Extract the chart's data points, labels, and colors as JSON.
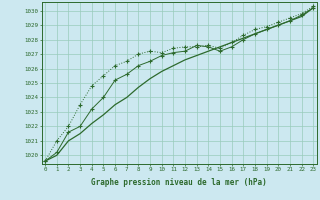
{
  "xlabel": "Graphe pression niveau de la mer (hPa)",
  "bg_color": "#cce8f0",
  "line_color": "#2d6a2d",
  "grid_color": "#99ccbb",
  "x_ticks": [
    0,
    1,
    2,
    3,
    4,
    5,
    6,
    7,
    8,
    9,
    10,
    11,
    12,
    13,
    14,
    15,
    16,
    17,
    18,
    19,
    20,
    21,
    22,
    23
  ],
  "xlim": [
    -0.3,
    23.3
  ],
  "ylim": [
    1019.4,
    1030.6
  ],
  "yticks": [
    1020,
    1021,
    1022,
    1023,
    1024,
    1025,
    1026,
    1027,
    1028,
    1029,
    1030
  ],
  "series_dotted": {
    "x": [
      0,
      1,
      2,
      3,
      4,
      5,
      6,
      7,
      8,
      9,
      10,
      11,
      12,
      13,
      14,
      15,
      16,
      17,
      18,
      19,
      20,
      21,
      22,
      23
    ],
    "y": [
      1019.6,
      1021.0,
      1022.0,
      1023.5,
      1024.8,
      1025.5,
      1026.2,
      1026.5,
      1027.0,
      1027.2,
      1027.1,
      1027.4,
      1027.5,
      1027.5,
      1027.6,
      1027.4,
      1027.8,
      1028.3,
      1028.7,
      1028.9,
      1029.2,
      1029.5,
      1029.8,
      1030.3
    ]
  },
  "series_marker": {
    "x": [
      0,
      1,
      2,
      3,
      4,
      5,
      6,
      7,
      8,
      9,
      10,
      11,
      12,
      13,
      14,
      15,
      16,
      17,
      18,
      19,
      20,
      21,
      22,
      23
    ],
    "y": [
      1019.6,
      1020.2,
      1021.6,
      1022.0,
      1023.2,
      1024.0,
      1025.2,
      1025.6,
      1026.2,
      1026.5,
      1026.9,
      1027.1,
      1027.2,
      1027.6,
      1027.5,
      1027.2,
      1027.5,
      1028.0,
      1028.4,
      1028.7,
      1029.0,
      1029.3,
      1029.7,
      1030.2
    ]
  },
  "series_solid": {
    "x": [
      0,
      1,
      2,
      3,
      4,
      5,
      6,
      7,
      8,
      9,
      10,
      11,
      12,
      13,
      14,
      15,
      16,
      17,
      18,
      19,
      20,
      21,
      22,
      23
    ],
    "y": [
      1019.6,
      1020.0,
      1021.0,
      1021.5,
      1022.2,
      1022.8,
      1023.5,
      1024.0,
      1024.7,
      1025.3,
      1025.8,
      1026.2,
      1026.6,
      1026.9,
      1027.2,
      1027.5,
      1027.8,
      1028.1,
      1028.4,
      1028.7,
      1029.0,
      1029.3,
      1029.6,
      1030.2
    ]
  }
}
